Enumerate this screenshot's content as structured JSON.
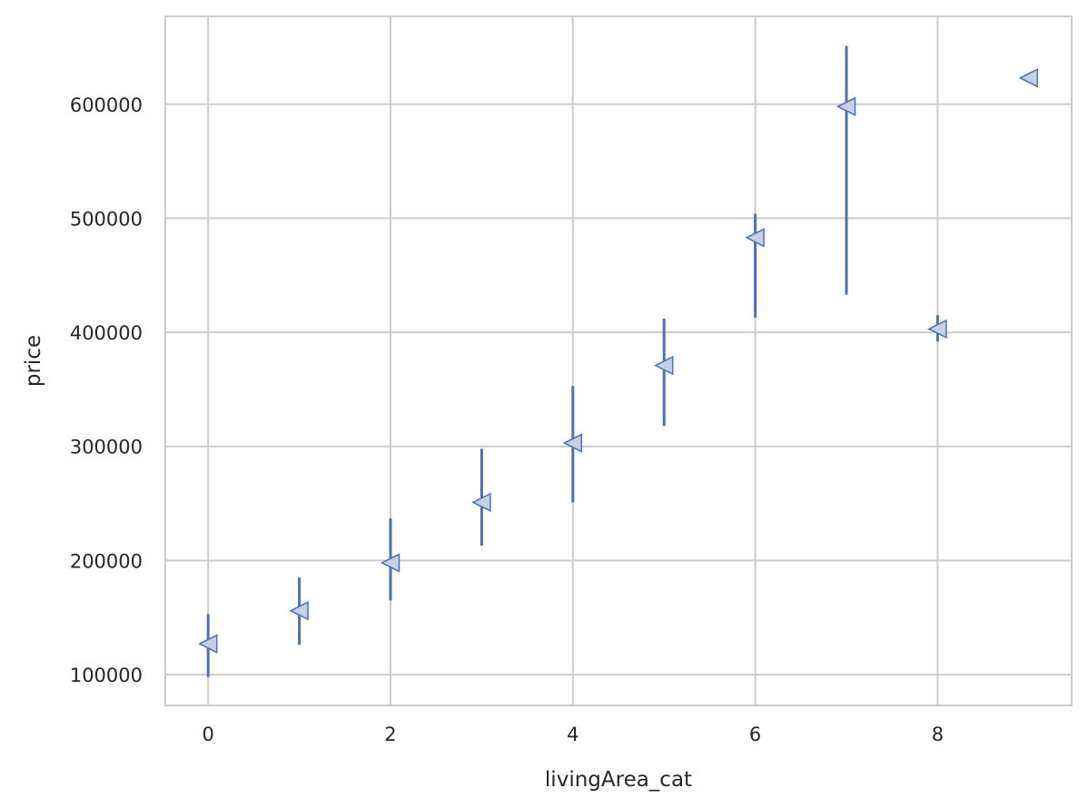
{
  "chart_data": {
    "type": "scatter",
    "xlabel": "livingArea_cat",
    "ylabel": "price",
    "xlim": [
      -0.47,
      9.47
    ],
    "ylim": [
      73000,
      677000
    ],
    "x_ticks": [
      0,
      2,
      4,
      6,
      8
    ],
    "y_ticks": [
      100000,
      200000,
      300000,
      400000,
      500000,
      600000
    ],
    "grid": true,
    "marker": "triangle-left",
    "colors": {
      "marker_fill": "#c5d0e6",
      "marker_edge": "#4c72b0",
      "error_bar": "#4c72b0",
      "grid": "#cccccc",
      "frame": "#cccccc"
    },
    "points": [
      {
        "x": 0,
        "y": 127000,
        "lo": 98000,
        "hi": 153000
      },
      {
        "x": 1,
        "y": 156000,
        "lo": 126000,
        "hi": 185000
      },
      {
        "x": 2,
        "y": 198000,
        "lo": 165000,
        "hi": 237000
      },
      {
        "x": 3,
        "y": 251000,
        "lo": 213000,
        "hi": 298000
      },
      {
        "x": 4,
        "y": 303000,
        "lo": 251000,
        "hi": 353000
      },
      {
        "x": 5,
        "y": 371000,
        "lo": 318000,
        "hi": 412000
      },
      {
        "x": 6,
        "y": 483000,
        "lo": 413000,
        "hi": 504000
      },
      {
        "x": 7,
        "y": 598000,
        "lo": 433000,
        "hi": 651000
      },
      {
        "x": 8,
        "y": 403000,
        "lo": 392000,
        "hi": 415000
      },
      {
        "x": 9,
        "y": 623000,
        "lo": 620000,
        "hi": 626000
      }
    ]
  }
}
